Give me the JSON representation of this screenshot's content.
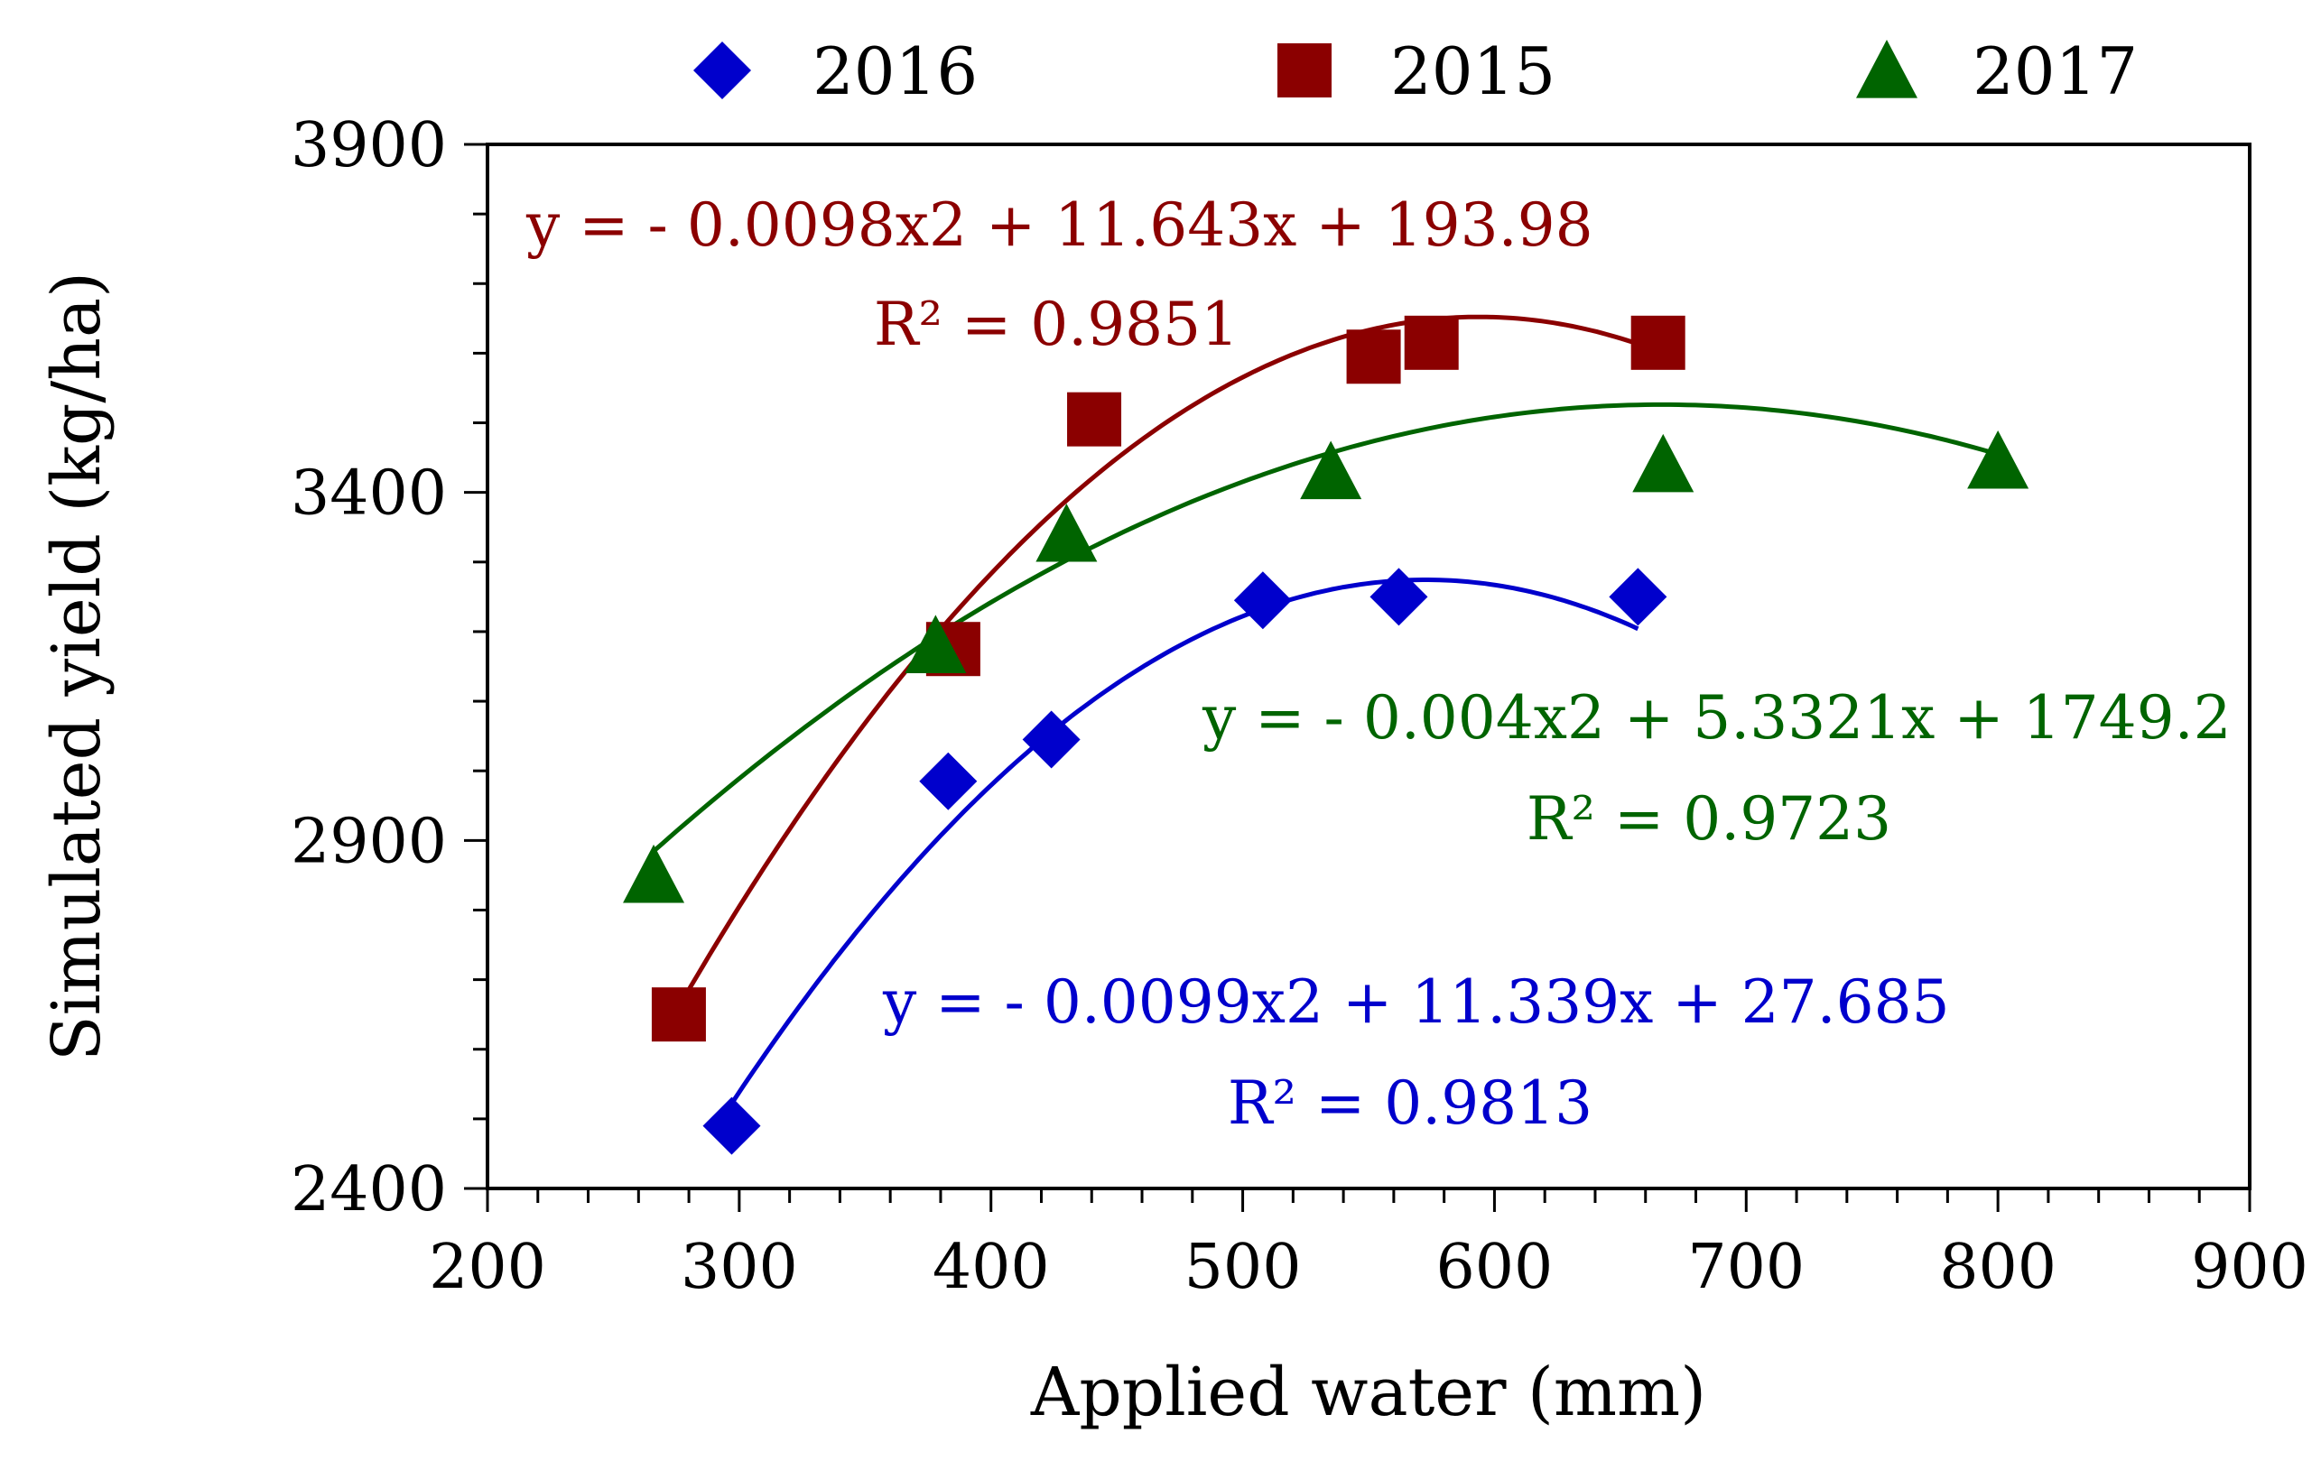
{
  "chart_data": {
    "type": "scatter",
    "xlabel": "Applied water (mm)",
    "ylabel": "Simulated yield (kg/ha)",
    "xlim": [
      200,
      900
    ],
    "ylim": [
      2400,
      3900
    ],
    "x_ticks": [
      "200",
      "300",
      "400",
      "500",
      "600",
      "700",
      "800",
      "900"
    ],
    "y_ticks": [
      "2400",
      "2900",
      "3400",
      "3900"
    ],
    "grid": false,
    "legend_position": "top",
    "legend": [
      {
        "name": "2016",
        "marker": "diamond",
        "color": "#0000CC"
      },
      {
        "name": "2015",
        "marker": "square",
        "color": "#8B0000"
      },
      {
        "name": "2017",
        "marker": "triangle",
        "color": "#006400"
      }
    ],
    "series": [
      {
        "name": "2016",
        "marker": "diamond",
        "color": "#0000CC",
        "points": [
          {
            "x": 297,
            "y": 2490
          },
          {
            "x": 383,
            "y": 2985
          },
          {
            "x": 424,
            "y": 3045
          },
          {
            "x": 508,
            "y": 3245
          },
          {
            "x": 562,
            "y": 3250
          },
          {
            "x": 657,
            "y": 3250
          }
        ],
        "trendline": {
          "a": -0.0099,
          "b": 11.339,
          "c": 27.685,
          "x_range": [
            297,
            657
          ]
        },
        "equation": "y = - 0.0099x2 + 11.339x + 27.685",
        "r2": "R² = 0.9813"
      },
      {
        "name": "2015",
        "marker": "square",
        "color": "#8B0000",
        "points": [
          {
            "x": 276,
            "y": 2650
          },
          {
            "x": 385,
            "y": 3175
          },
          {
            "x": 441,
            "y": 3505
          },
          {
            "x": 552,
            "y": 3595
          },
          {
            "x": 575,
            "y": 3615
          },
          {
            "x": 665,
            "y": 3615
          }
        ],
        "trendline": {
          "a": -0.0098,
          "b": 11.643,
          "c": 193.98,
          "x_range": [
            276,
            665
          ]
        },
        "equation": "y = -  0.0098x2 + 11.643x + 193.98",
        "r2": "R² = 0.9851"
      },
      {
        "name": "2017",
        "marker": "triangle",
        "color": "#006400",
        "points": [
          {
            "x": 266,
            "y": 2850
          },
          {
            "x": 378,
            "y": 3180
          },
          {
            "x": 430,
            "y": 3340
          },
          {
            "x": 535,
            "y": 3430
          },
          {
            "x": 667,
            "y": 3440
          },
          {
            "x": 800,
            "y": 3445
          }
        ],
        "trendline": {
          "a": -0.004,
          "b": 5.3321,
          "c": 1749.2,
          "x_range": [
            266,
            800
          ]
        },
        "equation": "y = - 0.004x2 + 5.3321x + 1749.2",
        "r2": "R² = 0.9723"
      }
    ]
  }
}
